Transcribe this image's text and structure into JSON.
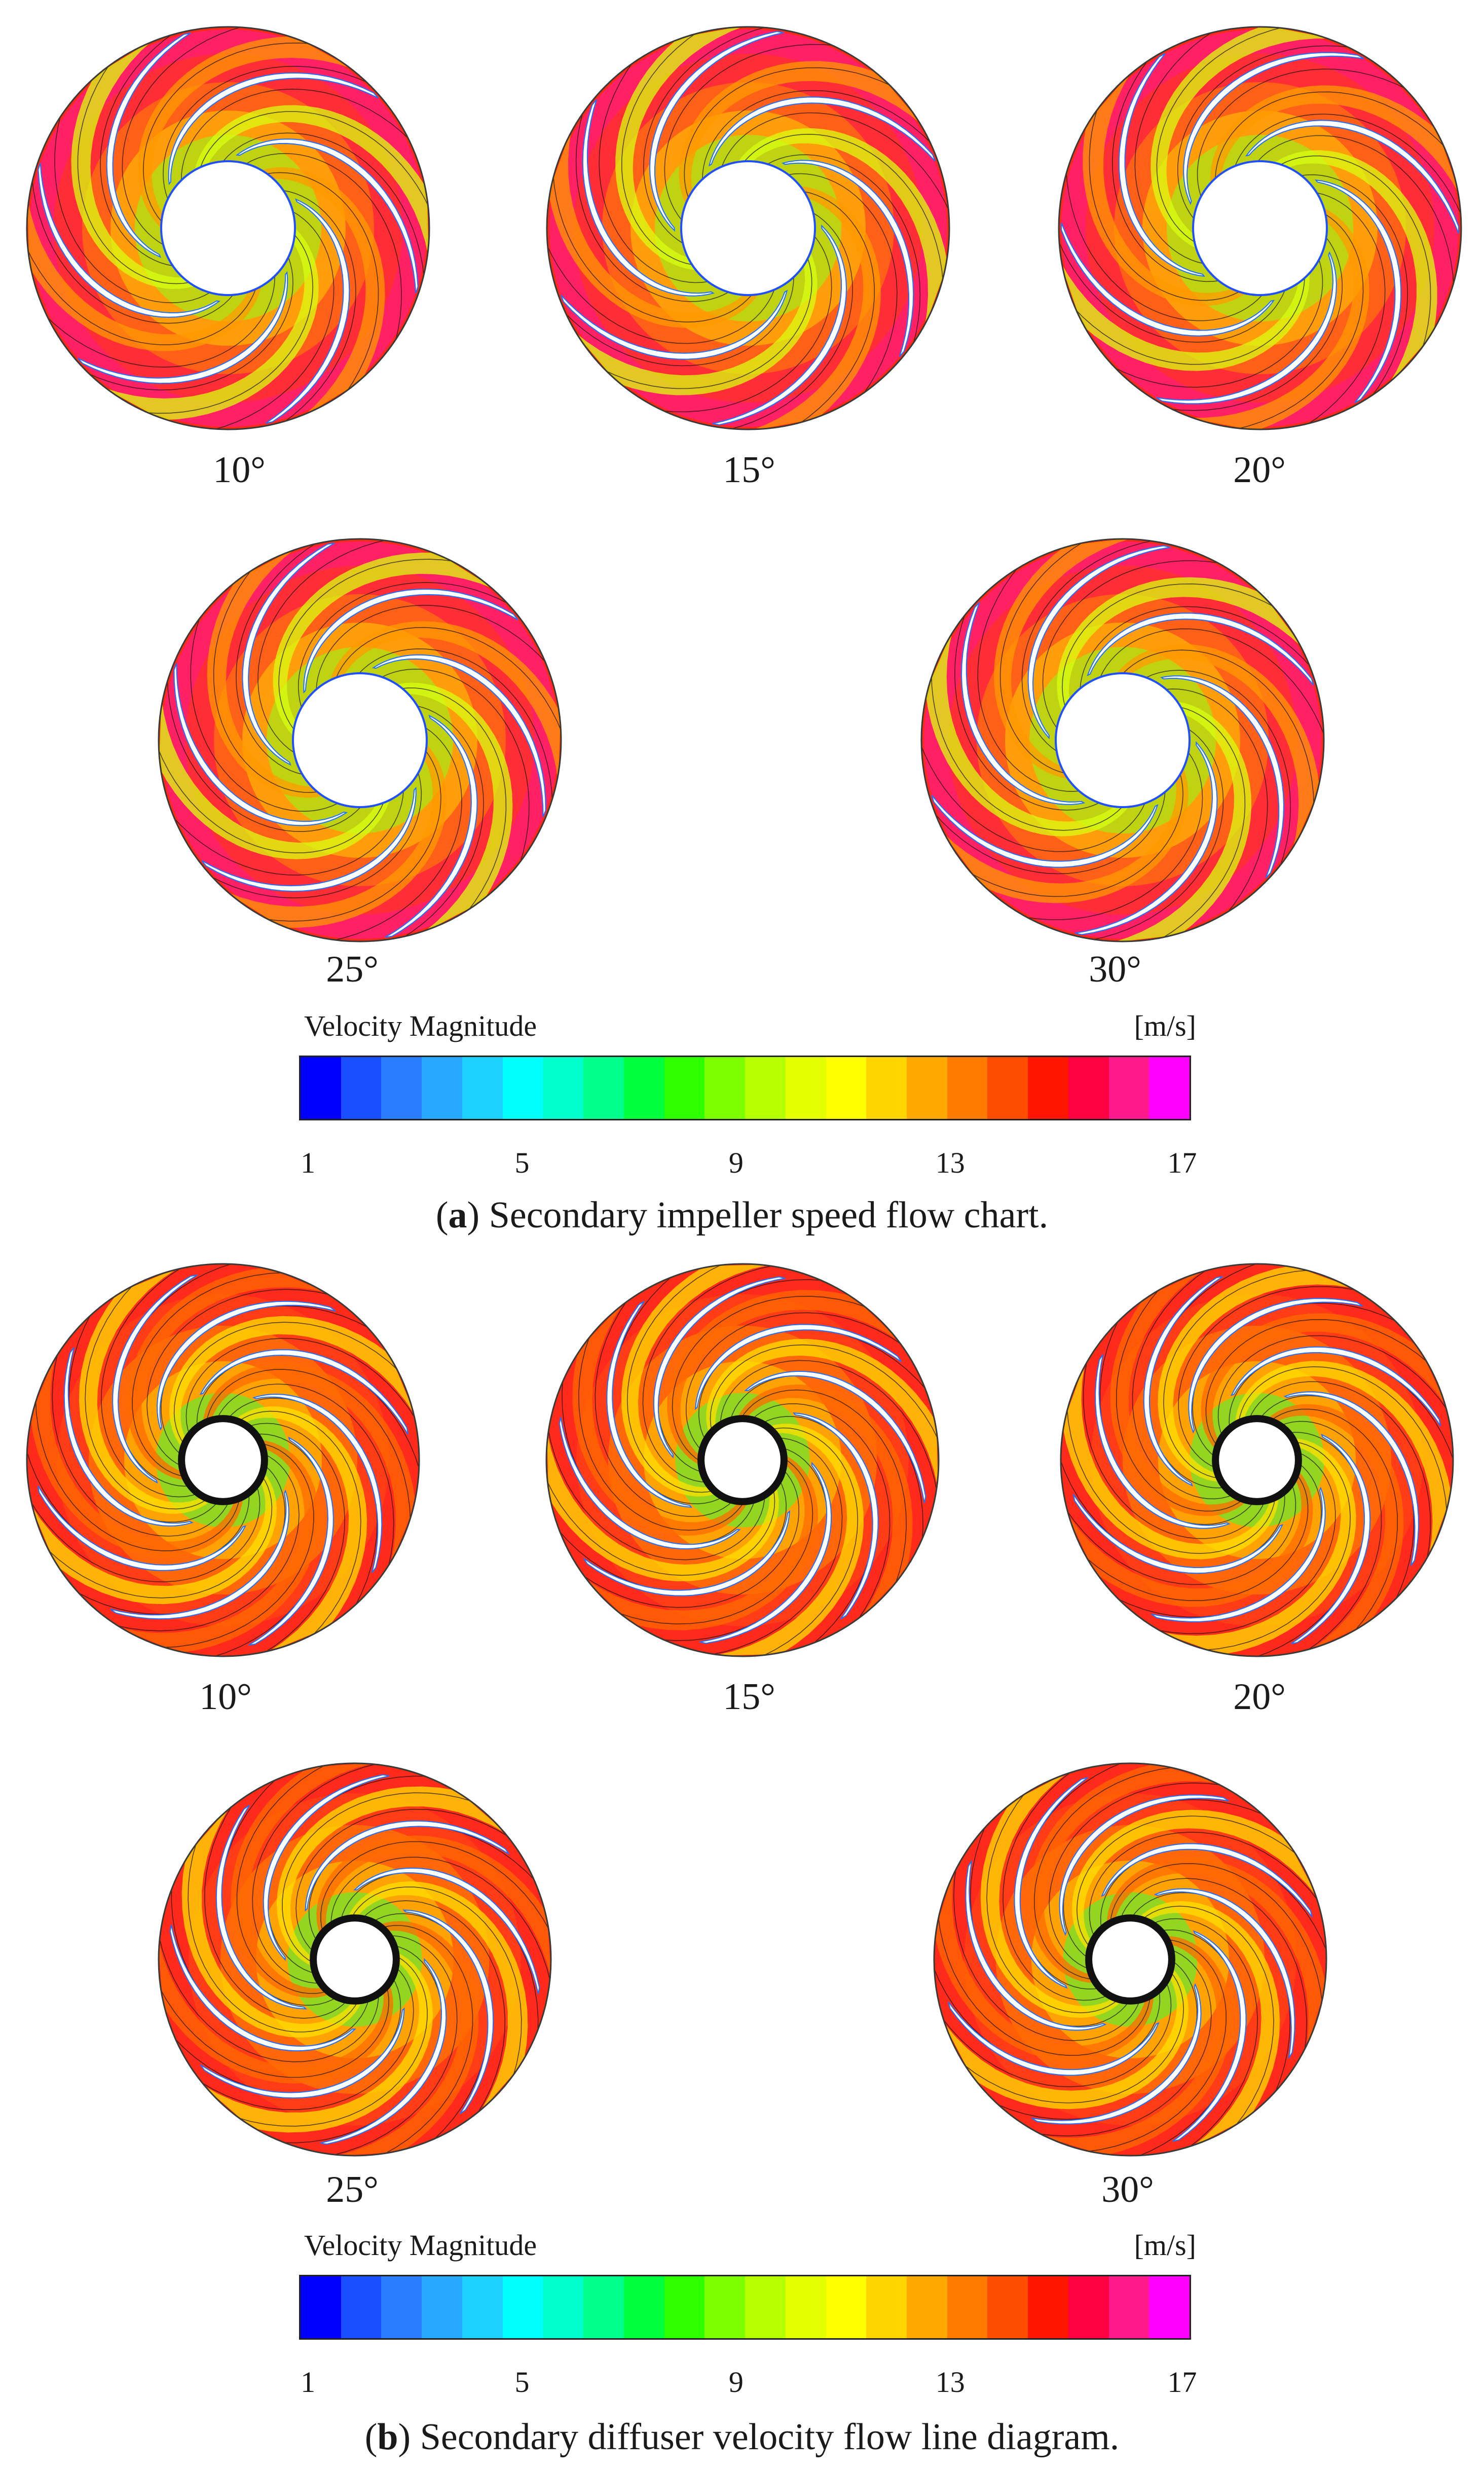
{
  "colormap": [
    "#0000ff",
    "#1a4fff",
    "#2b7dff",
    "#27a9ff",
    "#1ed2ff",
    "#00ffff",
    "#00ffcc",
    "#00ff8c",
    "#00ff3c",
    "#30ff00",
    "#7dff00",
    "#b6ff00",
    "#e4ff00",
    "#ffff00",
    "#ffd400",
    "#ffa900",
    "#ff7b00",
    "#ff4d00",
    "#ff1600",
    "#ff0040",
    "#ff1a8c",
    "#ff00ff"
  ],
  "panel_a": {
    "angles": [
      "10°",
      "15°",
      "20°",
      "25°",
      "30°"
    ],
    "legend": {
      "title": "Velocity Magnitude",
      "unit": "[m/s]",
      "ticks": [
        "1",
        "5",
        "9",
        "13",
        "17"
      ]
    },
    "caption": {
      "letter": "a",
      "text": " Secondary impeller speed flow chart."
    }
  },
  "panel_b": {
    "angles": [
      "10°",
      "15°",
      "20°",
      "25°",
      "30°"
    ],
    "legend": {
      "title": "Velocity Magnitude",
      "unit": "[m/s]",
      "ticks": [
        "1",
        "5",
        "9",
        "13",
        "17"
      ]
    },
    "caption": {
      "letter": "b",
      "text": " Secondary diffuser velocity flow line diagram."
    }
  }
}
